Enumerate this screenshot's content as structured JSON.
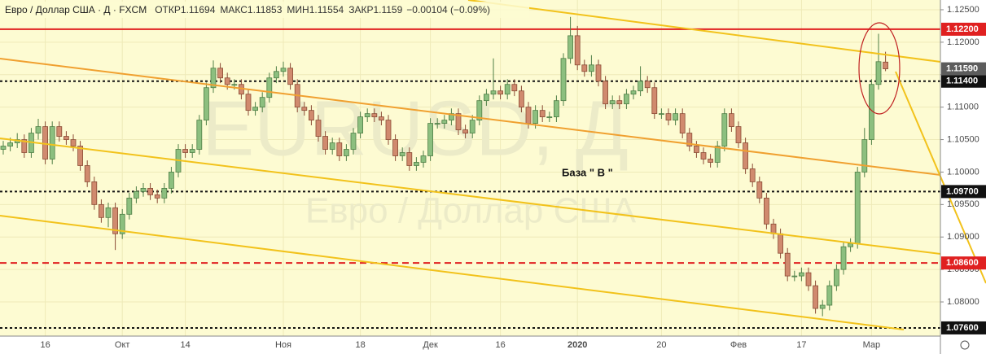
{
  "chart_data": {
    "type": "candlestick",
    "title": "Евро / Доллар США · Д · FXCM",
    "ohlc_names": [
      "ОТКР",
      "МАКС",
      "МИН",
      "ЗАКР"
    ],
    "ohlc_values": [
      1.11694,
      1.11853,
      1.11554,
      1.1159
    ],
    "change": "−0.00104 (−0.09%)",
    "watermark": "EURUSD, Д",
    "watermark_subtitle": "Евро / Доллар США",
    "annotation": "База  \" В \"",
    "up_color": "#8cbf7f",
    "down_color": "#d08a6e",
    "ylim": [
      1.07474,
      1.1265
    ],
    "yticks": [
      {
        "value": 1.08,
        "label": "1.08000"
      },
      {
        "value": 1.085,
        "label": "1.08500"
      },
      {
        "value": 1.09,
        "label": "1.09000"
      },
      {
        "value": 1.095,
        "label": "1.09500"
      },
      {
        "value": 1.1,
        "label": "1.10000"
      },
      {
        "value": 1.105,
        "label": "1.10500"
      },
      {
        "value": 1.11,
        "label": "1.11000"
      },
      {
        "value": 1.115,
        "label": "1.11500"
      },
      {
        "value": 1.12,
        "label": "1.12000"
      },
      {
        "value": 1.125,
        "label": "1.12500"
      }
    ],
    "levels": [
      {
        "value": 1.122,
        "label": "1.12200",
        "color": "#e02020",
        "style": "solid"
      },
      {
        "value": 1.114,
        "label": "1.11400",
        "color": "#111111",
        "style": "dotted"
      },
      {
        "value": 1.097,
        "label": "1.09700",
        "color": "#111111",
        "style": "dotted"
      },
      {
        "value": 1.086,
        "label": "1.08600",
        "color": "#e02020",
        "style": "dashed"
      },
      {
        "value": 1.076,
        "label": "1.07600",
        "color": "#111111",
        "style": "dotted"
      }
    ],
    "last_price": {
      "value": 1.1159,
      "label": "1.11590",
      "color": "#5c5c5c"
    },
    "categories": [
      null,
      null,
      null,
      null,
      null,
      null,
      "16",
      null,
      null,
      null,
      null,
      null,
      null,
      null,
      null,
      null,
      null,
      "Окт",
      null,
      null,
      null,
      null,
      null,
      null,
      null,
      null,
      "14",
      null,
      null,
      null,
      null,
      null,
      null,
      null,
      null,
      null,
      null,
      null,
      null,
      null,
      "Ноя",
      null,
      null,
      null,
      null,
      null,
      null,
      null,
      null,
      null,
      null,
      "18",
      null,
      null,
      null,
      null,
      null,
      null,
      null,
      null,
      null,
      "Дек",
      null,
      null,
      null,
      null,
      null,
      null,
      null,
      null,
      null,
      "16",
      null,
      null,
      null,
      null,
      null,
      null,
      null,
      null,
      null,
      null,
      "2020",
      null,
      null,
      null,
      null,
      null,
      null,
      null,
      null,
      null,
      null,
      null,
      "20",
      null,
      null,
      null,
      null,
      null,
      null,
      null,
      null,
      null,
      null,
      "Фев",
      null,
      null,
      null,
      null,
      null,
      null,
      null,
      null,
      "17",
      null,
      null,
      null,
      null,
      null,
      null,
      null,
      null,
      null,
      "Мар",
      null,
      null
    ],
    "open": [
      1.1035,
      1.104,
      1.1045,
      1.105,
      1.103,
      1.106,
      1.107,
      1.102,
      1.107,
      1.1055,
      1.105,
      1.104,
      1.101,
      1.0985,
      1.095,
      1.093,
      1.0945,
      1.0905,
      1.0935,
      1.096,
      1.097,
      1.0975,
      1.0965,
      1.096,
      1.0975,
      1.1,
      1.1035,
      1.103,
      1.1035,
      1.108,
      1.113,
      1.116,
      1.1145,
      1.1135,
      1.1135,
      1.112,
      1.1095,
      1.11,
      1.1115,
      1.1145,
      1.1155,
      1.116,
      1.1135,
      1.11,
      1.1095,
      1.108,
      1.1055,
      1.1035,
      1.1045,
      1.1025,
      1.1035,
      1.106,
      1.1085,
      1.109,
      1.1085,
      1.108,
      1.105,
      1.1025,
      1.103,
      1.101,
      1.1015,
      1.1025,
      1.1075,
      1.1075,
      1.108,
      1.109,
      1.1065,
      1.106,
      1.108,
      1.111,
      1.112,
      1.1125,
      1.112,
      1.1135,
      1.1125,
      1.11,
      1.1075,
      1.1095,
      1.1085,
      1.1085,
      1.111,
      1.1175,
      1.121,
      1.1165,
      1.1155,
      1.1165,
      1.114,
      1.1105,
      1.111,
      1.1105,
      1.112,
      1.1125,
      1.114,
      1.113,
      1.109,
      1.109,
      1.108,
      1.109,
      1.106,
      1.104,
      1.103,
      1.102,
      1.1015,
      1.104,
      1.109,
      1.107,
      1.1045,
      1.1005,
      1.0985,
      1.096,
      1.092,
      1.0905,
      1.0875,
      1.084,
      1.084,
      1.0845,
      1.0825,
      1.079,
      1.0795,
      1.0825,
      1.085,
      1.0885,
      1.089,
      1.1,
      1.105,
      1.1135,
      1.11694
    ],
    "high": [
      1.1048,
      1.1053,
      1.106,
      1.1058,
      1.1068,
      1.1082,
      1.1078,
      1.1078,
      1.1078,
      1.1063,
      1.1058,
      1.1048,
      1.1018,
      1.0993,
      1.0958,
      1.0953,
      1.0953,
      1.0943,
      1.0968,
      1.0978,
      1.0983,
      1.0983,
      1.0973,
      1.0983,
      1.1008,
      1.1043,
      1.1043,
      1.1043,
      1.1088,
      1.1138,
      1.1172,
      1.1168,
      1.1153,
      1.1143,
      1.1143,
      1.1128,
      1.1108,
      1.1123,
      1.1153,
      1.1163,
      1.117,
      1.1168,
      1.1143,
      1.1108,
      1.1103,
      1.1088,
      1.1063,
      1.1053,
      1.1053,
      1.1043,
      1.1068,
      1.1093,
      1.1098,
      1.1098,
      1.1093,
      1.1088,
      1.1058,
      1.1038,
      1.1038,
      1.1023,
      1.1033,
      1.1083,
      1.1083,
      1.1088,
      1.1098,
      1.1098,
      1.1073,
      1.1088,
      1.1118,
      1.1128,
      1.1175,
      1.1133,
      1.1143,
      1.1143,
      1.1133,
      1.1108,
      1.1103,
      1.1103,
      1.1093,
      1.1118,
      1.1183,
      1.1239,
      1.1225,
      1.1173,
      1.118,
      1.1173,
      1.1148,
      1.1118,
      1.1118,
      1.1128,
      1.1133,
      1.1163,
      1.1148,
      1.1138,
      1.1098,
      1.1098,
      1.1098,
      1.1098,
      1.1068,
      1.1048,
      1.1038,
      1.1028,
      1.1048,
      1.1098,
      1.1098,
      1.1078,
      1.1053,
      1.1013,
      1.0993,
      1.0968,
      1.0928,
      1.0913,
      1.0883,
      1.0848,
      1.0853,
      1.0853,
      1.0833,
      1.0803,
      1.0833,
      1.0858,
      1.0893,
      1.0898,
      1.1008,
      1.1068,
      1.1143,
      1.1213,
      1.11853
    ],
    "low": [
      1.1027,
      1.1032,
      1.1037,
      1.1022,
      1.1022,
      1.105,
      1.1012,
      1.1012,
      1.1047,
      1.1042,
      1.1032,
      1.1002,
      1.0977,
      1.0942,
      1.0922,
      1.0915,
      1.088,
      1.0897,
      1.0927,
      1.0952,
      1.0962,
      1.0957,
      1.0952,
      1.0952,
      1.0967,
      1.0992,
      1.1022,
      1.1022,
      1.1027,
      1.1072,
      1.1122,
      1.1137,
      1.1127,
      1.1127,
      1.1112,
      1.1087,
      1.1087,
      1.1092,
      1.1107,
      1.1137,
      1.1147,
      1.1127,
      1.1092,
      1.1087,
      1.1072,
      1.1047,
      1.1027,
      1.1027,
      1.1017,
      1.1017,
      1.1027,
      1.1052,
      1.1077,
      1.1077,
      1.1072,
      1.1042,
      1.1017,
      1.1017,
      1.1002,
      1.1002,
      1.1007,
      1.1017,
      1.1067,
      1.1067,
      1.1072,
      1.1057,
      1.1052,
      1.1052,
      1.1072,
      1.1102,
      1.1112,
      1.1112,
      1.1112,
      1.1117,
      1.1092,
      1.1067,
      1.1067,
      1.1077,
      1.1077,
      1.1077,
      1.1102,
      1.1167,
      1.1157,
      1.1147,
      1.1147,
      1.1132,
      1.1097,
      1.1097,
      1.1097,
      1.1097,
      1.1112,
      1.1117,
      1.1122,
      1.1082,
      1.1082,
      1.1072,
      1.1072,
      1.1052,
      1.1032,
      1.1022,
      1.1012,
      1.1007,
      1.1007,
      1.1032,
      1.1062,
      1.1037,
      1.0997,
      1.0977,
      1.0952,
      1.0912,
      1.0897,
      1.0867,
      1.0832,
      1.0832,
      1.0832,
      1.0817,
      1.0782,
      1.0778,
      1.0787,
      1.0817,
      1.0842,
      1.0877,
      1.0882,
      1.0992,
      1.1042,
      1.1127,
      1.11554
    ],
    "close": [
      1.104,
      1.1045,
      1.105,
      1.103,
      1.106,
      1.107,
      1.102,
      1.107,
      1.1055,
      1.105,
      1.104,
      1.101,
      1.0985,
      1.095,
      1.093,
      1.0945,
      1.0905,
      1.0935,
      1.096,
      1.097,
      1.0975,
      1.0965,
      1.096,
      1.0975,
      1.1,
      1.1035,
      1.103,
      1.1035,
      1.108,
      1.113,
      1.116,
      1.1145,
      1.1135,
      1.1135,
      1.112,
      1.1095,
      1.11,
      1.1115,
      1.1145,
      1.1155,
      1.116,
      1.1135,
      1.11,
      1.1095,
      1.108,
      1.1055,
      1.1035,
      1.1045,
      1.1025,
      1.1035,
      1.106,
      1.1085,
      1.109,
      1.1085,
      1.108,
      1.105,
      1.1025,
      1.103,
      1.101,
      1.1015,
      1.1025,
      1.1075,
      1.1075,
      1.108,
      1.109,
      1.1065,
      1.106,
      1.108,
      1.111,
      1.112,
      1.1125,
      1.112,
      1.1135,
      1.1125,
      1.11,
      1.1075,
      1.1095,
      1.1085,
      1.1085,
      1.111,
      1.1175,
      1.121,
      1.1165,
      1.1155,
      1.1165,
      1.114,
      1.1105,
      1.111,
      1.1105,
      1.112,
      1.1125,
      1.114,
      1.113,
      1.109,
      1.109,
      1.108,
      1.109,
      1.106,
      1.104,
      1.103,
      1.102,
      1.1015,
      1.104,
      1.109,
      1.107,
      1.1045,
      1.1005,
      1.0985,
      1.096,
      1.092,
      1.0905,
      1.0875,
      1.084,
      1.084,
      1.0845,
      1.0825,
      1.079,
      1.0795,
      1.0825,
      1.085,
      1.0885,
      1.089,
      1.1,
      1.105,
      1.1135,
      1.117,
      1.1159
    ]
  }
}
